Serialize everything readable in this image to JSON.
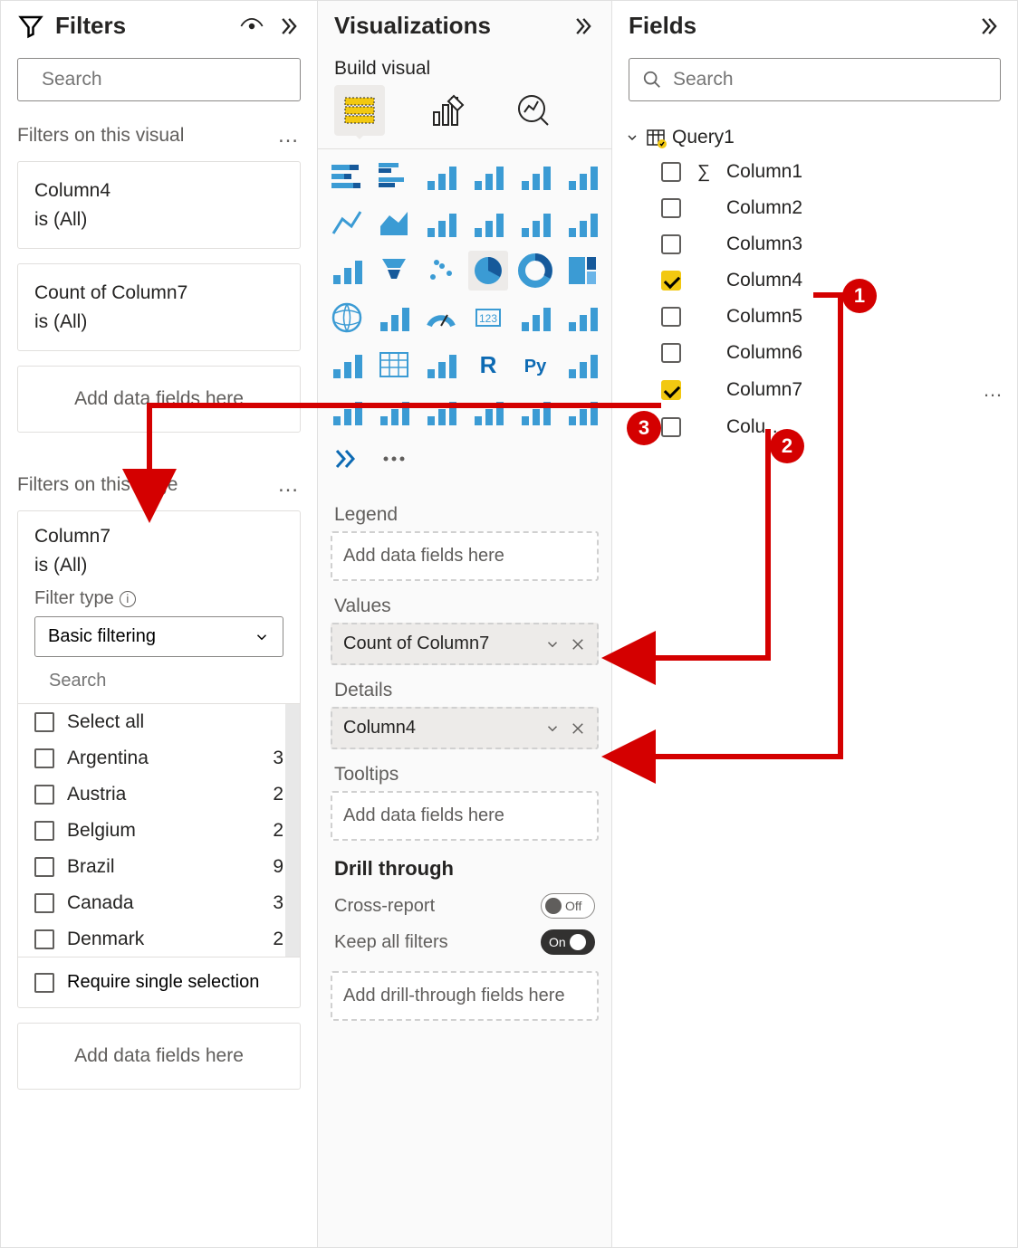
{
  "filters": {
    "title": "Filters",
    "search_placeholder": "Search",
    "visual_section": "Filters on this visual",
    "page_section": "Filters on this page",
    "visual_cards": [
      {
        "field": "Column4",
        "state": "is (All)"
      },
      {
        "field": "Count of Column7",
        "state": "is (All)"
      }
    ],
    "add_fields": "Add data fields here",
    "page_filter": {
      "field": "Column7",
      "state": "is (All)",
      "filter_type_label": "Filter type",
      "filter_type_value": "Basic filtering",
      "search_placeholder": "Search",
      "options": [
        {
          "name": "Select all",
          "count": ""
        },
        {
          "name": "Argentina",
          "count": "3"
        },
        {
          "name": "Austria",
          "count": "2"
        },
        {
          "name": "Belgium",
          "count": "2"
        },
        {
          "name": "Brazil",
          "count": "9"
        },
        {
          "name": "Canada",
          "count": "3"
        },
        {
          "name": "Denmark",
          "count": "2"
        }
      ],
      "require_single": "Require single selection"
    }
  },
  "viz": {
    "title": "Visualizations",
    "build_label": "Build visual",
    "wells": {
      "legend": {
        "label": "Legend",
        "placeholder": "Add data fields here"
      },
      "values": {
        "label": "Values",
        "chip": "Count of Column7"
      },
      "details": {
        "label": "Details",
        "chip": "Column4"
      },
      "tooltips": {
        "label": "Tooltips",
        "placeholder": "Add data fields here"
      }
    },
    "drill": {
      "title": "Drill through",
      "cross_report": "Cross-report",
      "cross_report_state": "Off",
      "keep_filters": "Keep all filters",
      "keep_filters_state": "On",
      "placeholder": "Add drill-through fields here"
    },
    "icons": [
      "stacked-bar",
      "clustered-bar",
      "stacked-100-bar",
      "stacked-column",
      "clustered-column",
      "stacked-100-column",
      "line",
      "area",
      "stacked-area",
      "line-column",
      "line-column-cluster",
      "ribbon",
      "waterfall",
      "funnel",
      "scatter",
      "pie",
      "donut",
      "treemap",
      "map",
      "filled-map",
      "gauge",
      "card",
      "multi-card",
      "kpi",
      "slicer",
      "table",
      "matrix",
      "r-visual",
      "py-visual",
      "key-influencer",
      "decomposition",
      "qna",
      "narrative",
      "paginated",
      "power-apps",
      "power-automate",
      "more-arrows",
      "ellipsis"
    ],
    "selected_icon_index": 15
  },
  "fields": {
    "title": "Fields",
    "search_placeholder": "Search",
    "table": "Query1",
    "columns": [
      {
        "name": "Column1",
        "checked": false,
        "sigma": true
      },
      {
        "name": "Column2",
        "checked": false,
        "sigma": false
      },
      {
        "name": "Column3",
        "checked": false,
        "sigma": false
      },
      {
        "name": "Column4",
        "checked": true,
        "sigma": false
      },
      {
        "name": "Column5",
        "checked": false,
        "sigma": false
      },
      {
        "name": "Column6",
        "checked": false,
        "sigma": false
      },
      {
        "name": "Column7",
        "checked": true,
        "sigma": false,
        "dots": true
      },
      {
        "name": "Colu…",
        "checked": false,
        "sigma": false
      }
    ]
  },
  "callouts": {
    "c1": "1",
    "c2": "2",
    "c3": "3"
  },
  "colors": {
    "accent_yellow": "#f2c811",
    "annotation_red": "#d40000",
    "icon_blue": "#0d6ab3"
  }
}
